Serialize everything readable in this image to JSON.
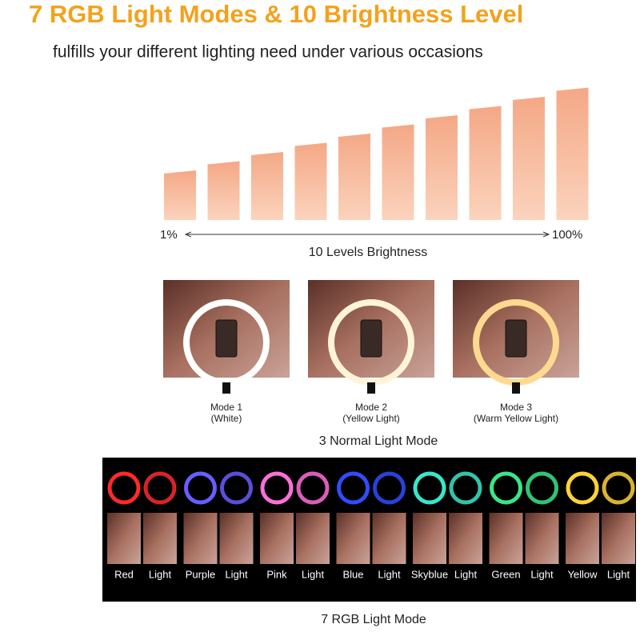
{
  "header": {
    "title": "7 RGB Light Modes & 10 Brightness Level",
    "subtitle": "fulfills your different lighting need under various occasions"
  },
  "brightness": {
    "min_label": "1%",
    "max_label": "100%",
    "caption": "10 Levels Brightness"
  },
  "normal_modes": {
    "items": [
      {
        "name": "Mode 1",
        "detail": "(White)"
      },
      {
        "name": "Mode 2",
        "detail": "(Yellow Light)"
      },
      {
        "name": "Mode 3",
        "detail": "(Warm Yellow Light)"
      }
    ],
    "caption": "3 Normal Light Mode"
  },
  "rgb_modes": {
    "items": [
      {
        "color_name": "Red",
        "light_label": "Light"
      },
      {
        "color_name": "Purple",
        "light_label": "Light"
      },
      {
        "color_name": "Pink",
        "light_label": "Light"
      },
      {
        "color_name": "Blue",
        "light_label": "Light"
      },
      {
        "color_name": "Skyblue",
        "light_label": "Light"
      },
      {
        "color_name": "Green",
        "light_label": "Light"
      },
      {
        "color_name": "Yellow",
        "light_label": "Light"
      }
    ],
    "caption": "7 RGB Light Mode"
  }
}
